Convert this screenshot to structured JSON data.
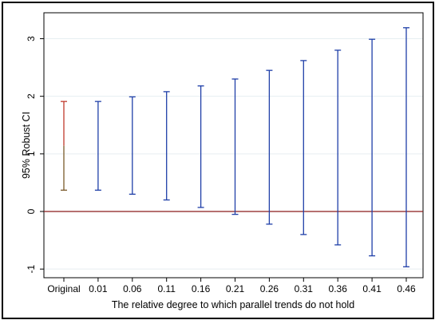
{
  "chart_data": {
    "type": "errorbar",
    "title": "",
    "xlabel": "The relative degree to which parallel trends do not hold",
    "ylabel": "95% Robust CI",
    "categories": [
      "Original",
      "0.01",
      "0.06",
      "0.11",
      "0.16",
      "0.21",
      "0.26",
      "0.31",
      "0.36",
      "0.41",
      "0.46"
    ],
    "series": [
      {
        "lower": [
          0.37,
          0.37,
          0.3,
          0.2,
          0.07,
          -0.05,
          -0.22,
          -0.4,
          -0.58,
          -0.77,
          -0.96
        ],
        "upper": [
          1.91,
          1.91,
          1.99,
          2.08,
          2.18,
          2.3,
          2.45,
          2.62,
          2.8,
          2.99,
          3.19
        ]
      }
    ],
    "yticks": [
      -1,
      0,
      1,
      2,
      3
    ],
    "ylim": [
      -1.15,
      3.45
    ],
    "reference_line": 0,
    "grid": true,
    "colors": {
      "original": "#c0392b",
      "bars": "#1f3fa8",
      "reference_line": "#8b1a1a",
      "grid": "#e6eef1",
      "plot_border": "#000000"
    }
  }
}
